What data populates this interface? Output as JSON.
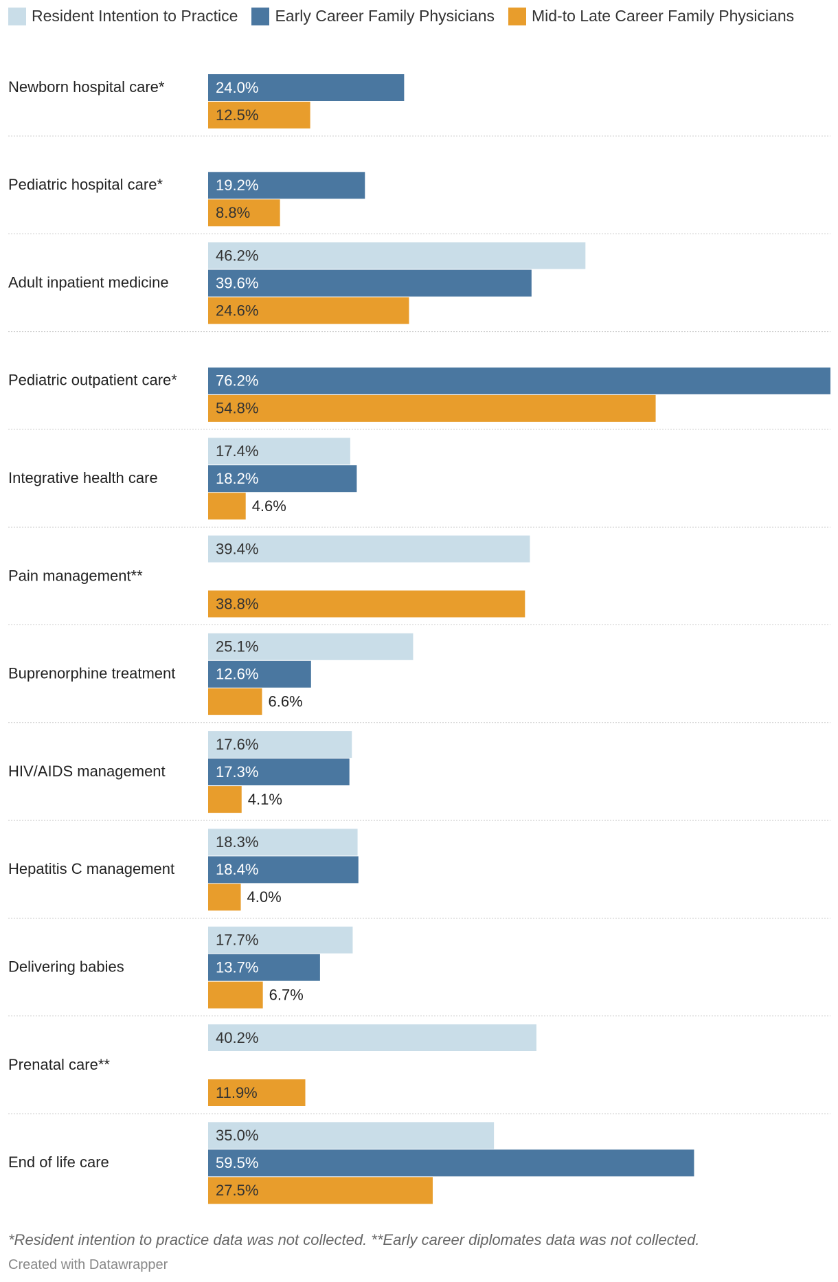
{
  "chart_data": {
    "type": "grouped-bar-horizontal",
    "categories": [
      "Newborn hospital care*",
      "Pediatric hospital care*",
      "Adult inpatient medicine",
      "Pediatric outpatient care*",
      "Integrative health care",
      "Pain management**",
      "Buprenorphine treatment",
      "HIV/AIDS management",
      "Hepatitis C management",
      "Delivering babies",
      "Prenatal care**",
      "End of life care"
    ],
    "series": [
      {
        "name": "Resident Intention to Practice",
        "color": "#c9dde8",
        "label_color": "#333333",
        "values": [
          null,
          null,
          46.2,
          null,
          17.4,
          39.4,
          25.1,
          17.6,
          18.3,
          17.7,
          40.2,
          35.0
        ],
        "value_labels": [
          null,
          null,
          "46.2%",
          null,
          "17.4%",
          "39.4%",
          "25.1%",
          "17.6%",
          "18.3%",
          "17.7%",
          "40.2%",
          "35.0%"
        ]
      },
      {
        "name": "Early Career Family Physicians",
        "color": "#4a77a0",
        "label_color": "#ffffff",
        "values": [
          24.0,
          19.2,
          39.6,
          76.2,
          18.2,
          null,
          12.6,
          17.3,
          18.4,
          13.7,
          null,
          59.5
        ],
        "value_labels": [
          "24.0%",
          "19.2%",
          "39.6%",
          "76.2%",
          "18.2%",
          null,
          "12.6%",
          "17.3%",
          "18.4%",
          "13.7%",
          null,
          "59.5%"
        ]
      },
      {
        "name": "Mid-to Late Career Family Physicians",
        "color": "#e89d2c",
        "label_color": "#333333",
        "values": [
          12.5,
          8.8,
          24.6,
          54.8,
          4.6,
          38.8,
          6.6,
          4.1,
          4.0,
          6.7,
          11.9,
          27.5
        ],
        "value_labels": [
          "12.5%",
          "8.8%",
          "24.6%",
          "54.8%",
          "4.6%",
          "38.8%",
          "6.6%",
          "4.1%",
          "4.0%",
          "6.7%",
          "11.9%",
          "27.5%"
        ]
      }
    ],
    "notes": "*Resident intention to practice data was not collected. **Early career diplomates data was not collected.",
    "credit": "Created with Datawrapper"
  }
}
